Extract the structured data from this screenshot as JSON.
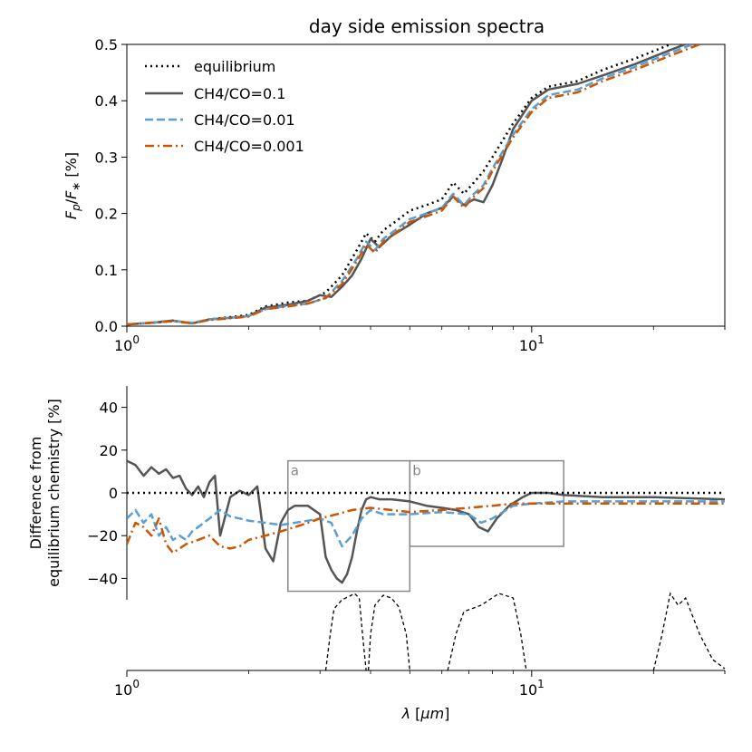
{
  "chart_data": [
    {
      "type": "line",
      "title": "day side emission spectra",
      "xlabel": "",
      "ylabel": "F_p/F_* [%]",
      "x_scale": "log",
      "xlim": [
        1,
        30
      ],
      "ylim": [
        0,
        0.5
      ],
      "x_tick_labels": [
        "10^0",
        "10^1"
      ],
      "y_tick_labels": [
        "0.0",
        "0.1",
        "0.2",
        "0.3",
        "0.4",
        "0.5"
      ],
      "legend_position": "top-left",
      "series": [
        {
          "name": "equilibrium",
          "style": "dotted",
          "color": "#000000",
          "x": [
            1.0,
            1.15,
            1.3,
            1.45,
            1.6,
            1.8,
            2.0,
            2.2,
            2.5,
            2.8,
            3.1,
            3.4,
            3.7,
            3.9,
            4.1,
            4.3,
            4.6,
            5.0,
            5.5,
            6.0,
            6.4,
            6.8,
            7.2,
            7.6,
            8.0,
            9.0,
            10.0,
            11.0,
            13.0,
            15.0,
            18.0,
            22.0,
            26.0,
            30.0
          ],
          "y": [
            0.003,
            0.006,
            0.009,
            0.006,
            0.012,
            0.016,
            0.02,
            0.035,
            0.042,
            0.045,
            0.06,
            0.09,
            0.135,
            0.165,
            0.15,
            0.17,
            0.185,
            0.205,
            0.215,
            0.225,
            0.255,
            0.235,
            0.255,
            0.275,
            0.3,
            0.36,
            0.405,
            0.425,
            0.435,
            0.455,
            0.475,
            0.5,
            0.52,
            0.53
          ]
        },
        {
          "name": "CH4/CO=0.1",
          "style": "solid",
          "color": "#555555",
          "x": [
            1.0,
            1.15,
            1.3,
            1.45,
            1.6,
            1.8,
            2.0,
            2.2,
            2.5,
            2.8,
            3.0,
            3.2,
            3.4,
            3.6,
            3.8,
            4.0,
            4.2,
            4.5,
            5.0,
            5.5,
            6.0,
            6.4,
            6.8,
            7.2,
            7.6,
            8.0,
            8.5,
            9.0,
            10.0,
            11.0,
            13.0,
            15.0,
            18.0,
            22.0,
            26.0,
            30.0
          ],
          "y": [
            0.003,
            0.006,
            0.01,
            0.005,
            0.012,
            0.015,
            0.018,
            0.033,
            0.038,
            0.045,
            0.055,
            0.052,
            0.07,
            0.09,
            0.12,
            0.155,
            0.14,
            0.16,
            0.18,
            0.2,
            0.21,
            0.23,
            0.215,
            0.225,
            0.22,
            0.25,
            0.3,
            0.35,
            0.4,
            0.42,
            0.43,
            0.445,
            0.465,
            0.49,
            0.51,
            0.52
          ]
        },
        {
          "name": "CH4/CO=0.01",
          "style": "dashed",
          "color": "#5a9fd4",
          "x": [
            1.0,
            1.15,
            1.3,
            1.45,
            1.6,
            1.8,
            2.0,
            2.2,
            2.5,
            2.8,
            3.1,
            3.4,
            3.7,
            3.9,
            4.1,
            4.3,
            4.6,
            5.0,
            5.5,
            6.0,
            6.4,
            6.8,
            7.2,
            7.6,
            8.0,
            9.0,
            10.0,
            11.0,
            13.0,
            15.0,
            18.0,
            22.0,
            26.0,
            30.0
          ],
          "y": [
            0.003,
            0.006,
            0.009,
            0.006,
            0.012,
            0.015,
            0.018,
            0.03,
            0.036,
            0.04,
            0.05,
            0.08,
            0.12,
            0.15,
            0.135,
            0.155,
            0.17,
            0.19,
            0.2,
            0.21,
            0.235,
            0.215,
            0.235,
            0.25,
            0.28,
            0.34,
            0.385,
            0.41,
            0.42,
            0.44,
            0.46,
            0.485,
            0.505,
            0.52
          ]
        },
        {
          "name": "CH4/CO=0.001",
          "style": "dashdot",
          "color": "#cc5500",
          "x": [
            1.0,
            1.15,
            1.3,
            1.45,
            1.6,
            1.8,
            2.0,
            2.2,
            2.5,
            2.8,
            3.1,
            3.4,
            3.7,
            3.9,
            4.1,
            4.3,
            4.6,
            5.0,
            5.5,
            6.0,
            6.4,
            6.8,
            7.2,
            7.6,
            8.0,
            9.0,
            10.0,
            11.0,
            13.0,
            15.0,
            18.0,
            22.0,
            26.0,
            30.0
          ],
          "y": [
            0.003,
            0.006,
            0.009,
            0.005,
            0.011,
            0.014,
            0.017,
            0.03,
            0.035,
            0.04,
            0.05,
            0.075,
            0.115,
            0.145,
            0.13,
            0.15,
            0.165,
            0.185,
            0.195,
            0.205,
            0.23,
            0.21,
            0.23,
            0.245,
            0.275,
            0.335,
            0.38,
            0.405,
            0.415,
            0.435,
            0.455,
            0.48,
            0.5,
            0.515
          ]
        }
      ]
    },
    {
      "type": "line",
      "title": "",
      "xlabel": "λ [μm]",
      "ylabel": "Difference from equilibrium chemistry [%]",
      "x_scale": "log",
      "xlim": [
        1,
        30
      ],
      "ylim": [
        -50,
        50
      ],
      "x_tick_labels": [
        "10^0",
        "10^1"
      ],
      "y_tick_labels": [
        "−40",
        "−20",
        "0",
        "20",
        "40"
      ],
      "zero_line": "dotted",
      "annotation_boxes": [
        {
          "label": "a",
          "x": [
            2.5,
            5.0
          ],
          "y": [
            -46,
            15
          ]
        },
        {
          "label": "b",
          "x": [
            5.0,
            12.0
          ],
          "y": [
            -25,
            15
          ]
        }
      ],
      "filter_curves_note": "dashed filter transmission curves below plot",
      "series": [
        {
          "name": "CH4/CO=0.1",
          "style": "solid",
          "color": "#555555",
          "x": [
            1.0,
            1.05,
            1.1,
            1.15,
            1.2,
            1.25,
            1.3,
            1.35,
            1.4,
            1.45,
            1.5,
            1.55,
            1.6,
            1.65,
            1.7,
            1.8,
            1.9,
            2.0,
            2.1,
            2.2,
            2.3,
            2.4,
            2.5,
            2.6,
            2.8,
            3.0,
            3.1,
            3.2,
            3.3,
            3.4,
            3.5,
            3.6,
            3.7,
            3.8,
            3.9,
            4.0,
            4.2,
            4.5,
            5.0,
            5.5,
            6.0,
            6.5,
            7.0,
            7.4,
            7.8,
            8.2,
            8.8,
            9.5,
            10.0,
            11.0,
            12.0,
            15.0,
            20.0,
            30.0
          ],
          "y": [
            15,
            13,
            8,
            12,
            9,
            11,
            7,
            8,
            2,
            -1,
            3,
            -2,
            5,
            8,
            -20,
            -2,
            1,
            -1,
            3,
            -26,
            -32,
            -14,
            -8,
            -6,
            -6,
            -10,
            -30,
            -36,
            -40,
            -42,
            -38,
            -30,
            -18,
            -8,
            -3,
            -2,
            -3,
            -3,
            -4,
            -6,
            -7,
            -8,
            -10,
            -16,
            -18,
            -12,
            -6,
            -2,
            0,
            0,
            -1,
            -2,
            -2,
            -3
          ]
        },
        {
          "name": "CH4/CO=0.01",
          "style": "dashed",
          "color": "#5a9fd4",
          "x": [
            1.0,
            1.05,
            1.1,
            1.15,
            1.2,
            1.25,
            1.3,
            1.35,
            1.4,
            1.45,
            1.5,
            1.6,
            1.7,
            1.8,
            1.9,
            2.0,
            2.2,
            2.4,
            2.6,
            2.8,
            3.0,
            3.2,
            3.4,
            3.6,
            3.8,
            4.0,
            4.3,
            4.6,
            5.0,
            6.0,
            7.0,
            7.5,
            8.0,
            9.0,
            10.0,
            12.0,
            15.0,
            20.0,
            30.0
          ],
          "y": [
            -12,
            -8,
            -14,
            -10,
            -20,
            -16,
            -22,
            -20,
            -22,
            -18,
            -16,
            -12,
            -8,
            -11,
            -12,
            -13,
            -14,
            -15,
            -14,
            -13,
            -12,
            -14,
            -25,
            -20,
            -12,
            -8,
            -10,
            -10,
            -10,
            -9,
            -10,
            -14,
            -12,
            -6,
            -5,
            -4,
            -4,
            -4,
            -4
          ]
        },
        {
          "name": "CH4/CO=0.001",
          "style": "dashdot",
          "color": "#cc5500",
          "x": [
            1.0,
            1.05,
            1.1,
            1.15,
            1.2,
            1.25,
            1.3,
            1.35,
            1.4,
            1.5,
            1.6,
            1.7,
            1.8,
            1.9,
            2.0,
            2.2,
            2.4,
            2.6,
            2.8,
            3.0,
            3.3,
            3.6,
            4.0,
            4.5,
            5.0,
            6.0,
            7.0,
            8.0,
            9.0,
            10.0,
            12.0,
            15.0,
            20.0,
            30.0
          ],
          "y": [
            -24,
            -14,
            -16,
            -20,
            -12,
            -24,
            -28,
            -26,
            -24,
            -22,
            -20,
            -25,
            -26,
            -25,
            -22,
            -20,
            -18,
            -16,
            -14,
            -12,
            -10,
            -8,
            -7,
            -8,
            -9,
            -8,
            -7,
            -6,
            -5,
            -5,
            -5,
            -5,
            -5,
            -5
          ]
        },
        {
          "name": "equilibrium",
          "style": "dotted",
          "color": "#000000",
          "x": [
            1.0,
            30.0
          ],
          "y": [
            0,
            0
          ]
        }
      ]
    }
  ]
}
